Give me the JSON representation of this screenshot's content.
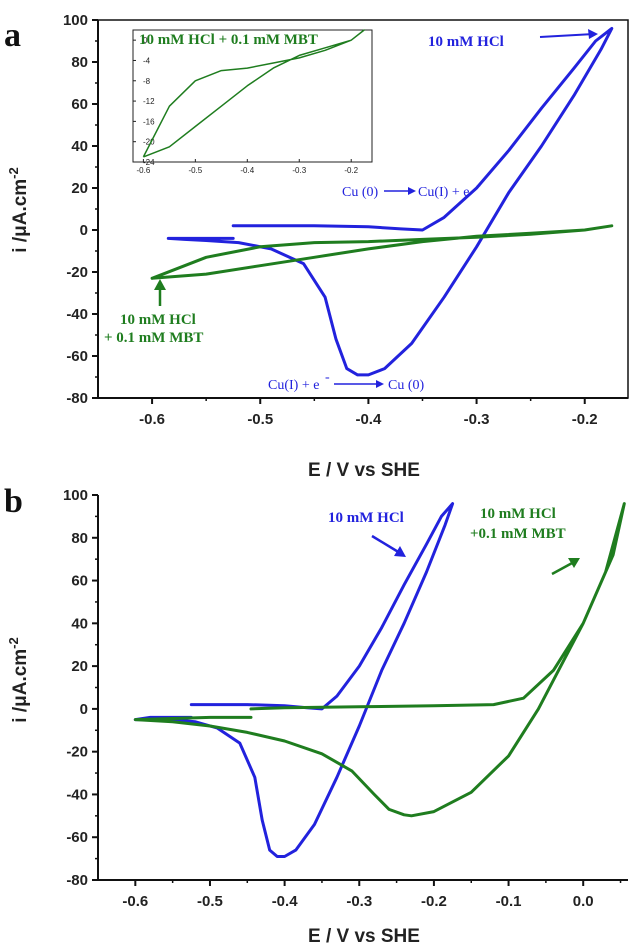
{
  "colors": {
    "blue": "#2222dd",
    "green": "#1f7d1f",
    "axis": "#111111"
  },
  "chart_data": [
    {
      "panel": "a",
      "type": "line",
      "xlabel": "E / V vs SHE",
      "ylabel": "i /μA.cm-2",
      "xlim": [
        -0.65,
        -0.16
      ],
      "ylim": [
        -80,
        100
      ],
      "xticks": [
        "-0.6",
        "-0.5",
        "-0.4",
        "-0.3",
        "-0.2"
      ],
      "yticks": [
        "-80",
        "-60",
        "-40",
        "-20",
        "0",
        "20",
        "40",
        "60",
        "80",
        "100"
      ],
      "grid": false,
      "series": [
        {
          "name": "10 mM HCl",
          "color": "#2222dd",
          "x": [
            -0.525,
            -0.45,
            -0.4,
            -0.37,
            -0.35,
            -0.33,
            -0.3,
            -0.27,
            -0.24,
            -0.21,
            -0.19,
            -0.175,
            -0.185,
            -0.21,
            -0.24,
            -0.27,
            -0.3,
            -0.33,
            -0.36,
            -0.385,
            -0.4,
            -0.41,
            -0.42,
            -0.43,
            -0.44,
            -0.46,
            -0.49,
            -0.52,
            -0.55,
            -0.57,
            -0.585,
            -0.57,
            -0.55,
            -0.525
          ],
          "y": [
            2,
            2,
            1.5,
            0.5,
            0,
            6,
            20,
            38,
            58,
            77,
            90,
            96,
            86,
            64,
            40,
            18,
            -8,
            -32,
            -54,
            -66,
            -69,
            -69,
            -66,
            -52,
            -32,
            -16,
            -9,
            -6,
            -5,
            -4.5,
            -4,
            -4,
            -4,
            -4
          ]
        },
        {
          "name": "10 mM HCl + 0.1 mM MBT",
          "color": "#1f7d1f",
          "x": [
            -0.6,
            -0.55,
            -0.5,
            -0.45,
            -0.4,
            -0.35,
            -0.3,
            -0.25,
            -0.2,
            -0.175,
            -0.2,
            -0.25,
            -0.3,
            -0.35,
            -0.4,
            -0.45,
            -0.5,
            -0.55,
            -0.6
          ],
          "y": [
            -23,
            -13,
            -8,
            -6,
            -5.5,
            -4.5,
            -3.5,
            -2,
            0,
            2,
            0,
            -1.5,
            -3,
            -5.5,
            -9,
            -13,
            -17,
            -21,
            -23
          ]
        }
      ],
      "annotations": [
        "10 mM HCl",
        "Cu (0)",
        "Cu(I) + e",
        "-",
        "10 mM HCl",
        "+ 0.1 mM MBT",
        "Cu(I) + e",
        "-",
        "Cu (0)"
      ],
      "inset": {
        "title": "10 mM HCl + 0.1 mM MBT",
        "xlim": [
          -0.62,
          -0.16
        ],
        "ylim": [
          -24,
          2
        ],
        "xticks": [
          "-0.6",
          "-0.5",
          "-0.4",
          "-0.3",
          "-0.2"
        ],
        "yticks": [
          "0",
          "-4",
          "-8",
          "-12",
          "-16",
          "-20",
          "-24"
        ],
        "x": [
          -0.6,
          -0.55,
          -0.5,
          -0.45,
          -0.4,
          -0.35,
          -0.3,
          -0.25,
          -0.2,
          -0.175,
          -0.2,
          -0.25,
          -0.3,
          -0.35,
          -0.4,
          -0.45,
          -0.5,
          -0.55,
          -0.6
        ],
        "y": [
          -23,
          -13,
          -8,
          -6,
          -5.5,
          -4.5,
          -3.5,
          -2,
          0,
          2,
          0,
          -1.5,
          -3,
          -5.5,
          -9,
          -13,
          -17,
          -21,
          -23
        ]
      }
    },
    {
      "panel": "b",
      "type": "line",
      "xlabel": "E / V vs SHE",
      "ylabel": "i /μA.cm-2",
      "xlim": [
        -0.65,
        0.06
      ],
      "ylim": [
        -80,
        100
      ],
      "xticks": [
        "-0.6",
        "-0.5",
        "-0.4",
        "-0.3",
        "-0.2",
        "-0.1",
        "0.0"
      ],
      "yticks": [
        "-80",
        "-60",
        "-40",
        "-20",
        "0",
        "20",
        "40",
        "60",
        "80",
        "100"
      ],
      "grid": false,
      "series": [
        {
          "name": "10 mM HCl",
          "color": "#2222dd",
          "x": [
            -0.525,
            -0.45,
            -0.4,
            -0.37,
            -0.35,
            -0.33,
            -0.3,
            -0.27,
            -0.24,
            -0.21,
            -0.19,
            -0.175,
            -0.185,
            -0.21,
            -0.24,
            -0.27,
            -0.3,
            -0.33,
            -0.36,
            -0.385,
            -0.4,
            -0.41,
            -0.42,
            -0.43,
            -0.44,
            -0.46,
            -0.49,
            -0.52,
            -0.55,
            -0.58,
            -0.6,
            -0.58,
            -0.55,
            -0.525
          ],
          "y": [
            2,
            2,
            1.5,
            0.5,
            0,
            6,
            20,
            38,
            58,
            77,
            90,
            96,
            86,
            64,
            40,
            18,
            -8,
            -32,
            -54,
            -66,
            -69,
            -69,
            -66,
            -52,
            -32,
            -16,
            -9,
            -6,
            -5,
            -5,
            -5,
            -4,
            -4,
            -4
          ]
        },
        {
          "name": "10 mM HCl +0.1 mM MBT",
          "color": "#1f7d1f",
          "x": [
            -0.445,
            -0.5,
            -0.55,
            -0.6,
            -0.55,
            -0.5,
            -0.45,
            -0.4,
            -0.35,
            -0.31,
            -0.28,
            -0.26,
            -0.24,
            -0.23,
            -0.2,
            -0.15,
            -0.1,
            -0.06,
            -0.03,
            0.0,
            0.03,
            0.055,
            0.04,
            0.0,
            -0.04,
            -0.08,
            -0.12,
            -0.2,
            -0.3,
            -0.4,
            -0.445
          ],
          "y": [
            -4,
            -4,
            -4.5,
            -5,
            -6,
            -8,
            -11,
            -15,
            -21,
            -29,
            -40,
            -47,
            -49.5,
            -50,
            -48,
            -39,
            -22,
            0,
            20,
            40,
            64,
            96,
            72,
            40,
            18,
            5,
            2,
            1.5,
            1,
            0.5,
            0
          ]
        }
      ],
      "annotations": [
        "10 mM HCl",
        "10 mM HCl",
        "+0.1 mM MBT"
      ]
    }
  ],
  "labels": {
    "panel_a": "a",
    "panel_b": "b"
  }
}
